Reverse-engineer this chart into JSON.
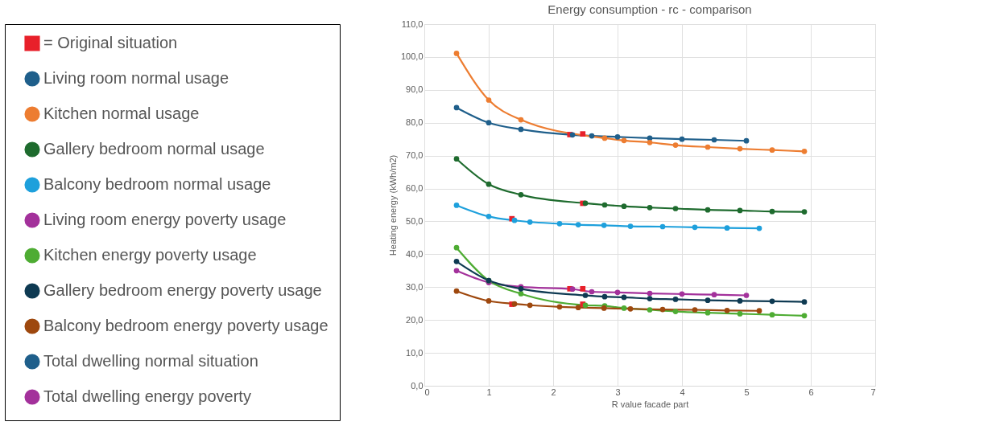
{
  "chart_data": {
    "type": "line",
    "title": "Energy consumption - rc - comparison",
    "xlabel": "R value facade part",
    "ylabel": "Heating energy (kWh/m2)",
    "xlim": [
      0,
      7
    ],
    "xticks": [
      0,
      1,
      2,
      3,
      4,
      5,
      6,
      7
    ],
    "ylim": [
      0,
      110
    ],
    "yticks": [
      {
        "value": 0,
        "label": "0,0"
      },
      {
        "value": 10,
        "label": "10,0"
      },
      {
        "value": 20,
        "label": "20,0"
      },
      {
        "value": 30,
        "label": "30,0"
      },
      {
        "value": 40,
        "label": "40,0"
      },
      {
        "value": 50,
        "label": "50,0"
      },
      {
        "value": 60,
        "label": "60,0"
      },
      {
        "value": 70,
        "label": "70,0"
      },
      {
        "value": 80,
        "label": "80,0"
      },
      {
        "value": 90,
        "label": "90,0"
      },
      {
        "value": 100,
        "label": "100,0"
      },
      {
        "value": 110,
        "label": "110,0"
      }
    ],
    "grid": true,
    "legend": "left",
    "marker": "circle",
    "line_style": "solid",
    "series": [
      {
        "name": "= Original situation",
        "type": "scatter",
        "marker": "square",
        "color": "#e8202a",
        "x": [
          2.26,
          2.46,
          2.46,
          1.36,
          2.26,
          2.46,
          2.46,
          1.36
        ],
        "values": [
          76.4,
          76.6,
          55.5,
          50.8,
          29.5,
          29.5,
          24.8,
          24.8
        ]
      },
      {
        "name": "Living room normal usage",
        "color": "#1f5f8b",
        "x": [
          0.5,
          1,
          1.5,
          2.3,
          2.6,
          3,
          3.5,
          4,
          4.5,
          5
        ],
        "values": [
          84.6,
          80.0,
          78.0,
          76.3,
          76.0,
          75.7,
          75.3,
          75.0,
          74.8,
          74.5
        ]
      },
      {
        "name": "Kitchen normal usage",
        "color": "#ed7d31",
        "x": [
          0.5,
          1,
          1.5,
          2.8,
          3.1,
          3.5,
          3.9,
          4.4,
          4.9,
          5.4,
          5.9
        ],
        "values": [
          101.1,
          86.9,
          80.9,
          75.3,
          74.6,
          74.0,
          73.2,
          72.6,
          72.1,
          71.7,
          71.3
        ]
      },
      {
        "name": "Gallery bedroom normal usage",
        "color": "#1e6b2e",
        "x": [
          0.5,
          1,
          1.5,
          2.5,
          2.8,
          3.1,
          3.5,
          3.9,
          4.4,
          4.9,
          5.4,
          5.9
        ],
        "values": [
          69.0,
          61.3,
          58.1,
          55.5,
          55.0,
          54.6,
          54.2,
          53.9,
          53.5,
          53.3,
          53.0,
          52.9
        ]
      },
      {
        "name": "Balcony bedroom normal usage",
        "color": "#1ea0dc",
        "x": [
          0.5,
          1,
          1.4,
          1.64,
          2.1,
          2.39,
          2.79,
          3.2,
          3.7,
          4.2,
          4.7,
          5.2
        ],
        "values": [
          54.9,
          51.5,
          50.3,
          49.8,
          49.3,
          49.0,
          48.8,
          48.5,
          48.4,
          48.2,
          48.0,
          47.9
        ]
      },
      {
        "name": "Living room energy poverty usage",
        "color": "#a3319b",
        "x": [
          0.5,
          1,
          1.5,
          2.3,
          2.6,
          3,
          3.5,
          4,
          4.5,
          5
        ],
        "values": [
          35.0,
          31.4,
          30.1,
          29.4,
          28.6,
          28.4,
          28.1,
          27.9,
          27.7,
          27.5
        ]
      },
      {
        "name": "Kitchen energy poverty usage",
        "color": "#4eac33",
        "x": [
          0.5,
          1,
          1.5,
          2.5,
          2.8,
          3.1,
          3.5,
          3.9,
          4.4,
          4.9,
          5.4,
          5.9
        ],
        "values": [
          42.0,
          32.0,
          28.0,
          24.5,
          24.3,
          23.6,
          23.1,
          22.6,
          22.2,
          21.9,
          21.6,
          21.3
        ]
      },
      {
        "name": "Gallery bedroom energy poverty usage",
        "color": "#0e3a52",
        "x": [
          0.5,
          1,
          1.5,
          2.5,
          2.8,
          3.1,
          3.5,
          3.9,
          4.4,
          4.9,
          5.4,
          5.9
        ],
        "values": [
          37.8,
          32.0,
          29.5,
          27.5,
          27.1,
          26.9,
          26.5,
          26.3,
          26.0,
          25.8,
          25.7,
          25.5
        ]
      },
      {
        "name": "Balcony bedroom energy poverty usage",
        "color": "#9e480e",
        "x": [
          0.5,
          1,
          1.4,
          1.64,
          2.1,
          2.39,
          2.79,
          3.2,
          3.7,
          4.2,
          4.7,
          5.2
        ],
        "values": [
          28.8,
          25.8,
          24.9,
          24.5,
          24.0,
          23.8,
          23.6,
          23.4,
          23.2,
          23.1,
          22.9,
          22.8
        ]
      },
      {
        "name": "Total dwelling normal situation",
        "color": "#1f5f8b"
      },
      {
        "name": "Total dwelling energy poverty",
        "color": "#a3319b"
      }
    ]
  }
}
